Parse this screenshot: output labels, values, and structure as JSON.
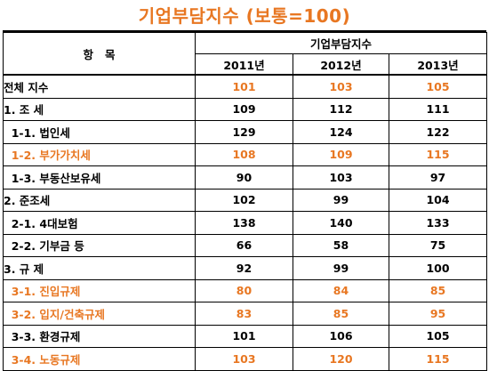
{
  "title": "기업부담지수 (보통=100)",
  "colors": {
    "highlight": "#E87722",
    "text": "#000000",
    "border": "#000000"
  },
  "header": {
    "item": "항   목",
    "group": "기업부담지수",
    "years": [
      "2011년",
      "2012년",
      "2013년"
    ]
  },
  "rows": [
    {
      "label": "전체 지수",
      "values": [
        "101",
        "103",
        "105"
      ],
      "highlight": true,
      "label_highlight": false
    },
    {
      "label": "1. 조 세",
      "values": [
        "109",
        "112",
        "111"
      ],
      "highlight": false,
      "label_highlight": false
    },
    {
      "label": "  1-1. 법인세",
      "values": [
        "129",
        "124",
        "122"
      ],
      "highlight": false,
      "label_highlight": false
    },
    {
      "label": "  1-2. 부가가치세",
      "values": [
        "108",
        "109",
        "115"
      ],
      "highlight": true,
      "label_highlight": true
    },
    {
      "label": "  1-3. 부동산보유세",
      "values": [
        "90",
        "103",
        "97"
      ],
      "highlight": false,
      "label_highlight": false
    },
    {
      "label": "2. 준조세",
      "values": [
        "102",
        "99",
        "104"
      ],
      "highlight": false,
      "label_highlight": false
    },
    {
      "label": "  2-1. 4대보험",
      "values": [
        "138",
        "140",
        "133"
      ],
      "highlight": false,
      "label_highlight": false
    },
    {
      "label": "  2-2. 기부금 등",
      "values": [
        "66",
        "58",
        "75"
      ],
      "highlight": false,
      "label_highlight": false
    },
    {
      "label": "3. 규 제",
      "values": [
        "92",
        "99",
        "100"
      ],
      "highlight": false,
      "label_highlight": false
    },
    {
      "label": "  3-1. 진입규제",
      "values": [
        "80",
        "84",
        "85"
      ],
      "highlight": true,
      "label_highlight": true
    },
    {
      "label": "  3-2. 입지/건축규제",
      "values": [
        "83",
        "85",
        "95"
      ],
      "highlight": true,
      "label_highlight": true
    },
    {
      "label": "  3-3. 환경규제",
      "values": [
        "101",
        "106",
        "105"
      ],
      "highlight": false,
      "label_highlight": false
    },
    {
      "label": "  3-4. 노동규제",
      "values": [
        "103",
        "120",
        "115"
      ],
      "highlight": true,
      "label_highlight": true
    }
  ]
}
